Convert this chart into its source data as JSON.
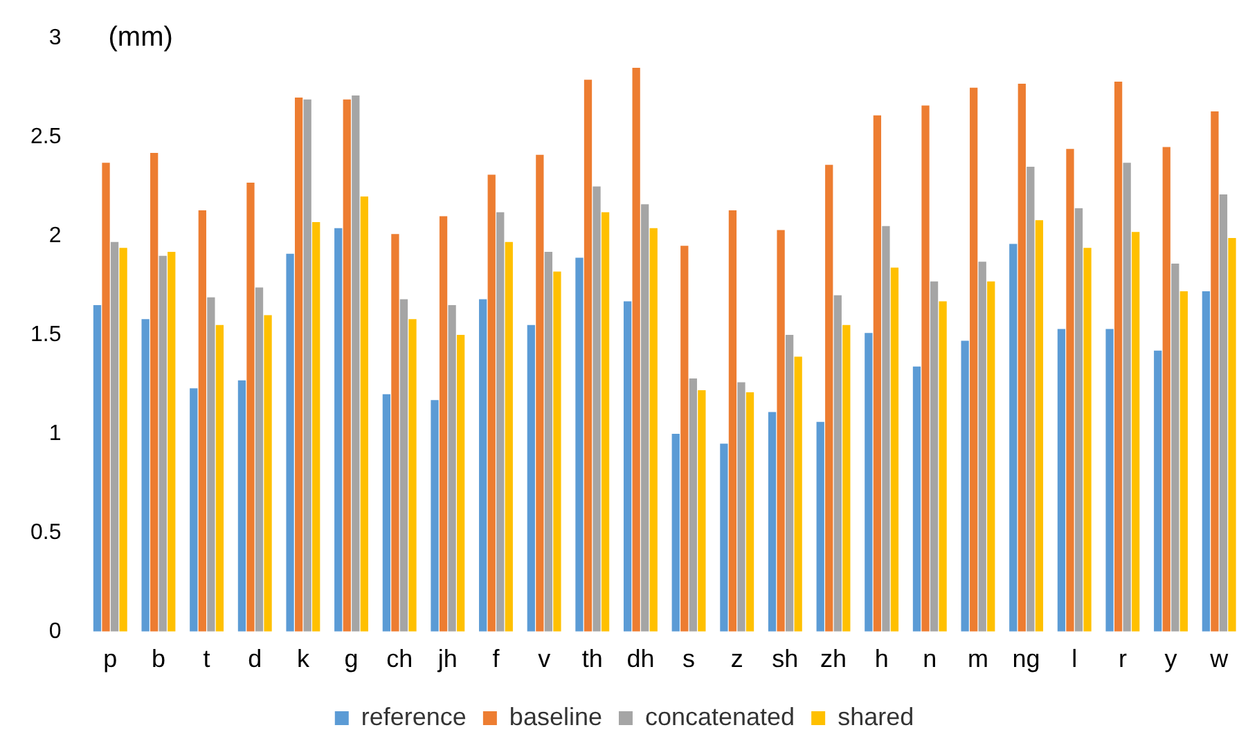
{
  "chart_data": {
    "type": "bar",
    "ylabel": "(mm)",
    "categories": [
      "p",
      "b",
      "t",
      "d",
      "k",
      "g",
      "ch",
      "jh",
      "f",
      "v",
      "th",
      "dh",
      "s",
      "z",
      "sh",
      "zh",
      "h",
      "n",
      "m",
      "ng",
      "l",
      "r",
      "y",
      "w"
    ],
    "series": [
      {
        "name": "reference",
        "color": "#5b9bd5",
        "values": [
          1.65,
          1.58,
          1.23,
          1.27,
          1.91,
          2.04,
          1.2,
          1.17,
          1.68,
          1.55,
          1.89,
          1.67,
          1.0,
          0.95,
          1.11,
          1.06,
          1.51,
          1.34,
          1.47,
          1.96,
          1.53,
          1.53,
          1.42,
          1.72
        ]
      },
      {
        "name": "baseline",
        "color": "#ed7d31",
        "values": [
          2.37,
          2.42,
          2.13,
          2.27,
          2.7,
          2.69,
          2.01,
          2.1,
          2.31,
          2.41,
          2.79,
          2.85,
          1.95,
          2.13,
          2.03,
          2.36,
          2.61,
          2.66,
          2.75,
          2.77,
          2.44,
          2.78,
          2.45,
          2.63
        ]
      },
      {
        "name": "concatenated",
        "color": "#a5a5a5",
        "values": [
          1.97,
          1.9,
          1.69,
          1.74,
          2.69,
          2.71,
          1.68,
          1.65,
          2.12,
          1.92,
          2.25,
          2.16,
          1.28,
          1.26,
          1.5,
          1.7,
          2.05,
          1.77,
          1.87,
          2.35,
          2.14,
          2.37,
          1.86,
          2.21
        ]
      },
      {
        "name": "shared",
        "color": "#ffc000",
        "values": [
          1.94,
          1.92,
          1.55,
          1.6,
          2.07,
          2.2,
          1.58,
          1.5,
          1.97,
          1.82,
          2.12,
          2.04,
          1.22,
          1.21,
          1.39,
          1.55,
          1.84,
          1.67,
          1.77,
          2.08,
          1.94,
          2.02,
          1.72,
          1.99
        ]
      }
    ],
    "ylim": [
      0,
      3
    ],
    "yticks": [
      0,
      0.5,
      1,
      1.5,
      2,
      2.5,
      3
    ],
    "grid": false,
    "legend": "bottom"
  }
}
